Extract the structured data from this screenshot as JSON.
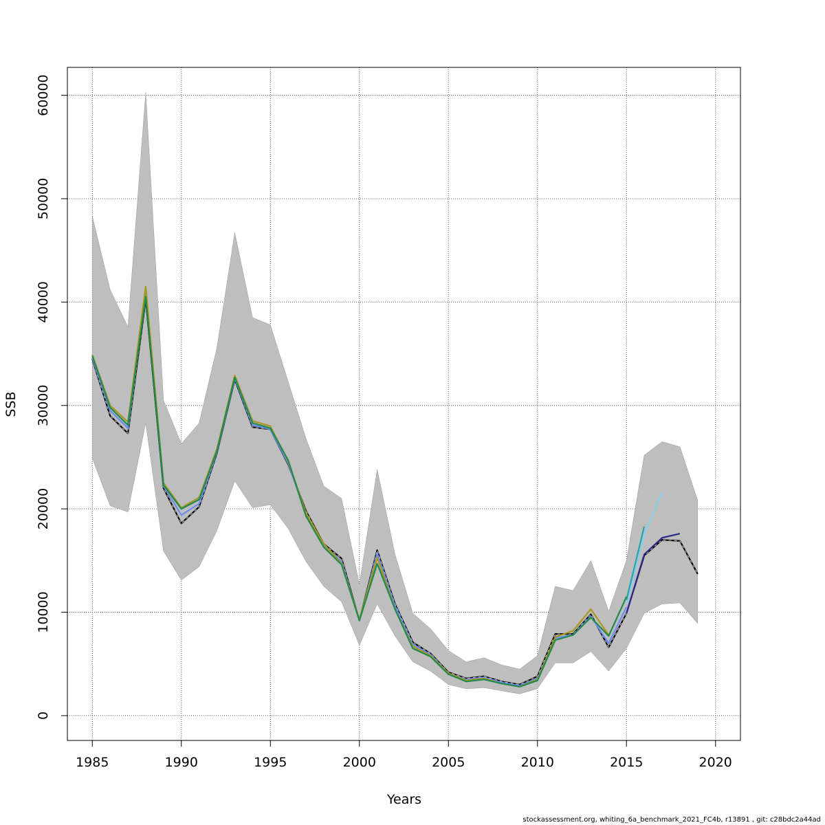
{
  "chart_data": {
    "type": "line",
    "title": "",
    "xlabel": "Years",
    "ylabel": "SSB",
    "xlim": [
      1983.6,
      2021.4
    ],
    "ylim": [
      -2400,
      62700
    ],
    "x_ticks": [
      1985,
      1990,
      1995,
      2000,
      2005,
      2010,
      2015,
      2020
    ],
    "y_ticks": [
      0,
      10000,
      20000,
      30000,
      40000,
      50000,
      60000
    ],
    "grid": true,
    "legend": "none",
    "band": {
      "color": "#bebebe",
      "x": [
        1985,
        1986,
        1987,
        1988,
        1989,
        1990,
        1991,
        1992,
        1993,
        1994,
        1995,
        1996,
        1997,
        1998,
        1999,
        2000,
        2001,
        2002,
        2003,
        2004,
        2005,
        2006,
        2007,
        2008,
        2009,
        2010,
        2011,
        2012,
        2013,
        2014,
        2015,
        2016,
        2017,
        2018,
        2019
      ],
      "upper": [
        48300,
        41200,
        37600,
        60300,
        30500,
        26300,
        28300,
        35600,
        46700,
        38500,
        37800,
        32300,
        26800,
        22200,
        21000,
        12700,
        23800,
        15600,
        9900,
        8400,
        6300,
        5200,
        5600,
        4900,
        4500,
        5800,
        12500,
        12100,
        15000,
        10100,
        15000,
        25200,
        26500,
        26000,
        20800
      ],
      "lower": [
        24900,
        20300,
        19700,
        28300,
        15900,
        13100,
        14400,
        17900,
        22700,
        20100,
        20400,
        18100,
        14900,
        12500,
        11000,
        6800,
        10800,
        7700,
        5200,
        4300,
        3000,
        2600,
        2700,
        2400,
        2100,
        2600,
        5100,
        5100,
        6200,
        4300,
        6500,
        9900,
        10800,
        10900,
        8900
      ]
    },
    "series": [
      {
        "color": "#000000",
        "dashed": true,
        "x": [
          1985,
          1986,
          1987,
          1988,
          1989,
          1990,
          1991,
          1992,
          1993,
          1994,
          1995,
          1996,
          1997,
          1998,
          1999,
          2000,
          2001,
          2002,
          2003,
          2004,
          2005,
          2006,
          2007,
          2008,
          2009,
          2010,
          2011,
          2012,
          2013,
          2014,
          2015,
          2016,
          2017,
          2018,
          2019
        ],
        "values": [
          34500,
          29000,
          27300,
          40300,
          22000,
          18600,
          20200,
          25400,
          32500,
          27900,
          27700,
          24300,
          19800,
          16600,
          15200,
          9200,
          16000,
          10800,
          7100,
          6000,
          4200,
          3600,
          3800,
          3300,
          3000,
          3800,
          7900,
          7900,
          9800,
          6600,
          9900,
          15500,
          17000,
          16900,
          13700
        ]
      },
      {
        "color": "#6b8cf0",
        "dashed": false,
        "x": [
          1985,
          1986,
          1987,
          1988,
          1989,
          1990,
          1991,
          1992,
          1993,
          1994,
          1995,
          1996,
          1997,
          1998,
          1999,
          2000,
          2001,
          2002,
          2003,
          2004,
          2005,
          2006,
          2007,
          2008,
          2009,
          2010,
          2011,
          2012,
          2013,
          2014,
          2015
        ],
        "values": [
          34600,
          29500,
          27800,
          40700,
          22200,
          19400,
          20500,
          25500,
          32600,
          28100,
          27700,
          24400,
          19500,
          16500,
          14900,
          9200,
          15700,
          10600,
          6900,
          5900,
          4100,
          3500,
          3700,
          3200,
          2900,
          3600,
          7500,
          7800,
          9600,
          7000,
          10500
        ]
      },
      {
        "color": "#87ceeb",
        "dashed": false,
        "x": [
          2015,
          2016,
          2017
        ],
        "values": [
          10800,
          17500,
          21600
        ]
      },
      {
        "color": "#2aa3a3",
        "dashed": false,
        "x": [
          2015,
          2016
        ],
        "values": [
          11200,
          18300
        ]
      },
      {
        "color": "#2e2a8c",
        "dashed": false,
        "x": [
          2015,
          2016,
          2017,
          2018
        ],
        "values": [
          9900,
          15600,
          17200,
          17600
        ]
      },
      {
        "color": "#a8961e",
        "dashed": false,
        "x": [
          1985,
          1986,
          1987,
          1988,
          1989,
          1990,
          1991,
          1992,
          1993,
          1994,
          1995,
          1996,
          1997,
          1998,
          1999,
          2000,
          2001,
          2002,
          2003,
          2004,
          2005,
          2006,
          2007,
          2008,
          2009,
          2010,
          2011,
          2012,
          2013,
          2014
        ],
        "values": [
          34900,
          30000,
          28400,
          41500,
          22500,
          20100,
          21100,
          25800,
          32900,
          28500,
          28000,
          24600,
          19600,
          16600,
          14700,
          9300,
          15300,
          10300,
          6700,
          5800,
          4100,
          3400,
          3600,
          3100,
          2800,
          3500,
          7600,
          8200,
          10300,
          7800
        ]
      },
      {
        "color": "#1f8a4c",
        "dashed": false,
        "x": [
          1985,
          1986,
          1987,
          1988,
          1989,
          1990,
          1991,
          1992,
          1993,
          1994,
          1995,
          1996,
          1997,
          1998,
          1999,
          2000,
          2001,
          2002,
          2003,
          2004,
          2005,
          2006,
          2007,
          2008,
          2009,
          2010,
          2011,
          2012,
          2013,
          2014,
          2015
        ],
        "values": [
          34800,
          29800,
          28100,
          40500,
          22300,
          20000,
          20900,
          25600,
          32700,
          28300,
          27800,
          24700,
          19300,
          16300,
          14600,
          9200,
          14700,
          10300,
          6500,
          5700,
          4000,
          3300,
          3500,
          3100,
          2800,
          3400,
          7300,
          7800,
          9500,
          7700,
          11500
        ]
      }
    ]
  },
  "footnote": "stockassessment.org, whiting_6a_benchmark_2021_FC4b, r13891 , git: c28bdc2a44ad"
}
